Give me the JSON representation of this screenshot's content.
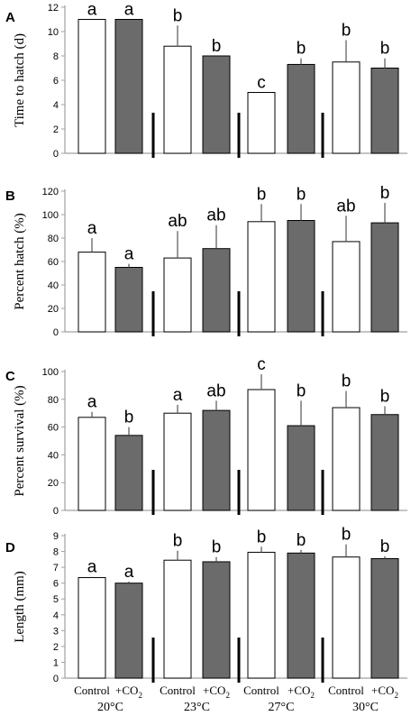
{
  "chart_data": [
    {
      "panel": "A",
      "type": "bar",
      "ylabel": "Time to hatch (d)",
      "ylim": [
        0,
        12
      ],
      "yticks": [
        0,
        2,
        4,
        6,
        8,
        10,
        12
      ],
      "values": [
        11,
        11,
        8.8,
        8,
        5,
        7.3,
        7.5,
        7
      ],
      "errors": [
        0,
        0,
        1.7,
        0,
        0,
        0.5,
        1.8,
        0.8
      ],
      "letters": [
        "a",
        "a",
        "b",
        "b",
        "c",
        "b",
        "b",
        "b"
      ]
    },
    {
      "panel": "B",
      "type": "bar",
      "ylabel": "Percent hatch (%)",
      "ylim": [
        0,
        120
      ],
      "yticks": [
        0,
        20,
        40,
        60,
        80,
        100,
        120
      ],
      "values": [
        68,
        55,
        63,
        71,
        94,
        95,
        77,
        93
      ],
      "errors": [
        12,
        3,
        23,
        20,
        15,
        14,
        22,
        17
      ],
      "letters": [
        "a",
        "a",
        "ab",
        "ab",
        "b",
        "b",
        "ab",
        "b"
      ]
    },
    {
      "panel": "C",
      "type": "bar",
      "ylabel": "Percent survival (%)",
      "ylim": [
        0,
        100
      ],
      "yticks": [
        0,
        20,
        40,
        60,
        80,
        100
      ],
      "values": [
        67,
        54,
        70,
        72,
        87,
        61,
        74,
        69
      ],
      "errors": [
        4,
        6,
        6,
        7,
        11,
        18,
        12,
        6
      ],
      "letters": [
        "a",
        "b",
        "a",
        "ab",
        "c",
        "b",
        "b",
        "b"
      ]
    },
    {
      "panel": "D",
      "type": "bar",
      "ylabel": "Length (mm)",
      "ylim": [
        0,
        9
      ],
      "yticks": [
        0,
        1,
        2,
        3,
        4,
        5,
        6,
        7,
        8,
        9
      ],
      "values": [
        6.35,
        6.0,
        7.45,
        7.35,
        7.95,
        7.9,
        7.65,
        7.55
      ],
      "errors": [
        0.05,
        0.1,
        0.6,
        0.3,
        0.35,
        0.2,
        0.8,
        0.15
      ],
      "letters": [
        "a",
        "a",
        "b",
        "b",
        "b",
        "b",
        "b",
        "b"
      ]
    }
  ],
  "categories": [
    "Control",
    "+CO2",
    "Control",
    "+CO2",
    "Control",
    "+CO2",
    "Control",
    "+CO2"
  ],
  "temperatures": [
    "20°C",
    "23°C",
    "27°C",
    "30°C"
  ],
  "colors": {
    "control": "#ffffff",
    "co2": "#6b6b6b",
    "axis": "#a0a0a0"
  }
}
